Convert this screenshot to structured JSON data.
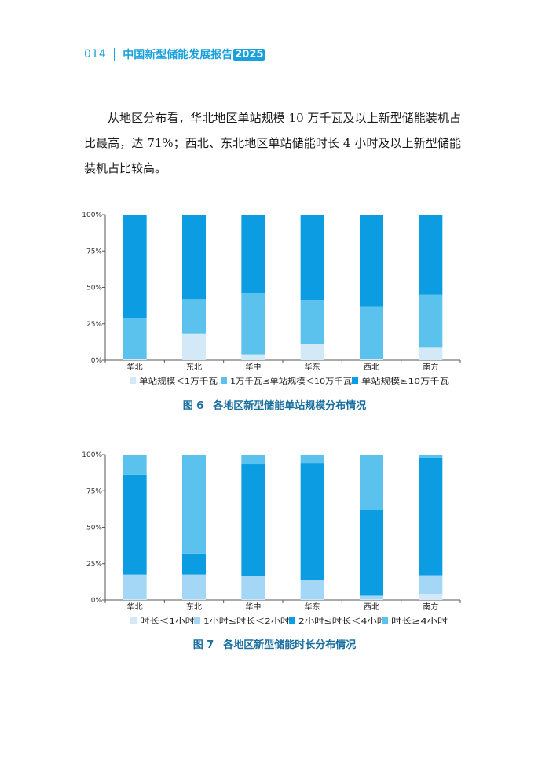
{
  "header": {
    "page_number": "014",
    "title": "中国新型储能发展报告",
    "year": "2025"
  },
  "paragraph": "从地区分布看，华北地区单站规模 10 万千瓦及以上新型储能装机占比最高，达 71%；西北、东北地区单站储能时长 4 小时及以上新型储能装机占比较高。",
  "figure6": {
    "label": "图 6",
    "title": "各地区新型储能单站规模分布情况"
  },
  "figure7": {
    "label": "图 7",
    "title": "各地区新型储能时长分布情况"
  },
  "chart_data": [
    {
      "type": "bar",
      "stacked": true,
      "categories": [
        "华北",
        "东北",
        "华中",
        "华东",
        "西北",
        "南方"
      ],
      "yticks": [
        "0%",
        "25%",
        "50%",
        "75%",
        "100%"
      ],
      "ylim": [
        0,
        100
      ],
      "legend_position": "bottom",
      "series": [
        {
          "name": "单站规模＜1万千瓦",
          "color": "#d3e9f8",
          "values": [
            1,
            18,
            4,
            11,
            1,
            9
          ]
        },
        {
          "name": "1万千瓦≤单站规模＜10万千瓦",
          "color": "#5bc2ee",
          "values": [
            28,
            24,
            42,
            30,
            36,
            36
          ]
        },
        {
          "name": "单站规模≥10万千瓦",
          "color": "#0c9ce2",
          "values": [
            71,
            58,
            54,
            59,
            63,
            55
          ]
        }
      ]
    },
    {
      "type": "bar",
      "stacked": true,
      "categories": [
        "华北",
        "东北",
        "华中",
        "华东",
        "西北",
        "南方"
      ],
      "yticks": [
        "0%",
        "25%",
        "50%",
        "75%",
        "100%"
      ],
      "ylim": [
        0,
        100
      ],
      "legend_position": "bottom",
      "series": [
        {
          "name": "时长＜1小时",
          "color": "#d3e9f8",
          "values": [
            0.5,
            0.5,
            0.5,
            0.5,
            0.5,
            4
          ]
        },
        {
          "name": "1小时≤时长＜2小时",
          "color": "#a3d7f5",
          "values": [
            17,
            17,
            16,
            13,
            2.5,
            13
          ]
        },
        {
          "name": "2小时≤时长＜4小时",
          "color": "#0c9ce2",
          "values": [
            68.5,
            14.5,
            77,
            80.5,
            59,
            81
          ]
        },
        {
          "name": "时长≥4小时",
          "color": "#5bc2ee",
          "values": [
            14,
            68,
            6.5,
            6,
            38,
            2
          ]
        }
      ]
    }
  ]
}
